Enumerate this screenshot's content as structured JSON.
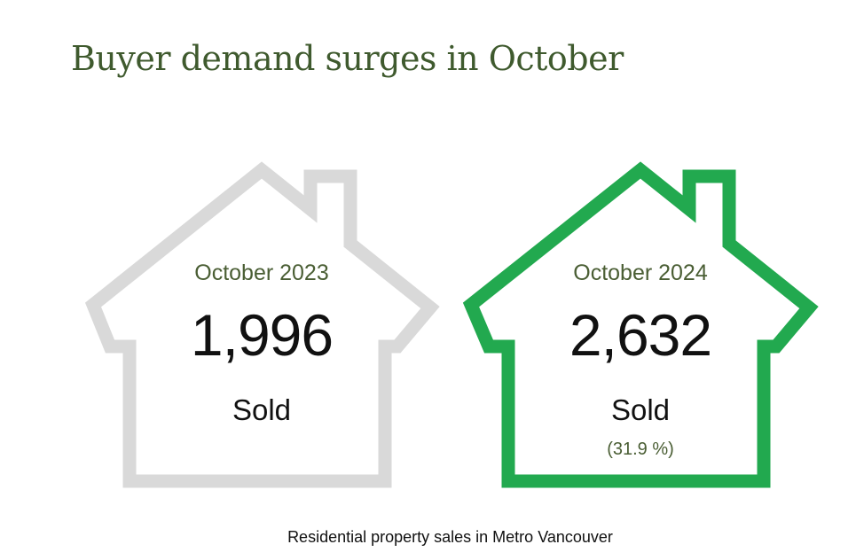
{
  "title": "Buyer demand surges in October",
  "caption": "Residential property sales in Metro Vancouver",
  "colors": {
    "title": "#3f5a2e",
    "house_previous": "#d9d9d9",
    "house_current": "#22a94f"
  },
  "icons": {
    "previous": "house-outline-icon",
    "current": "house-outline-icon"
  },
  "chart_data": {
    "type": "table",
    "title": "Buyer demand surges in October",
    "caption": "Residential property sales in Metro Vancouver",
    "items": [
      {
        "period": "October 2023",
        "value": 1996,
        "value_label": "1,996",
        "unit_label": "Sold",
        "change_label": ""
      },
      {
        "period": "October 2024",
        "value": 2632,
        "value_label": "2,632",
        "unit_label": "Sold",
        "change_label": "(31.9 %)"
      }
    ]
  }
}
